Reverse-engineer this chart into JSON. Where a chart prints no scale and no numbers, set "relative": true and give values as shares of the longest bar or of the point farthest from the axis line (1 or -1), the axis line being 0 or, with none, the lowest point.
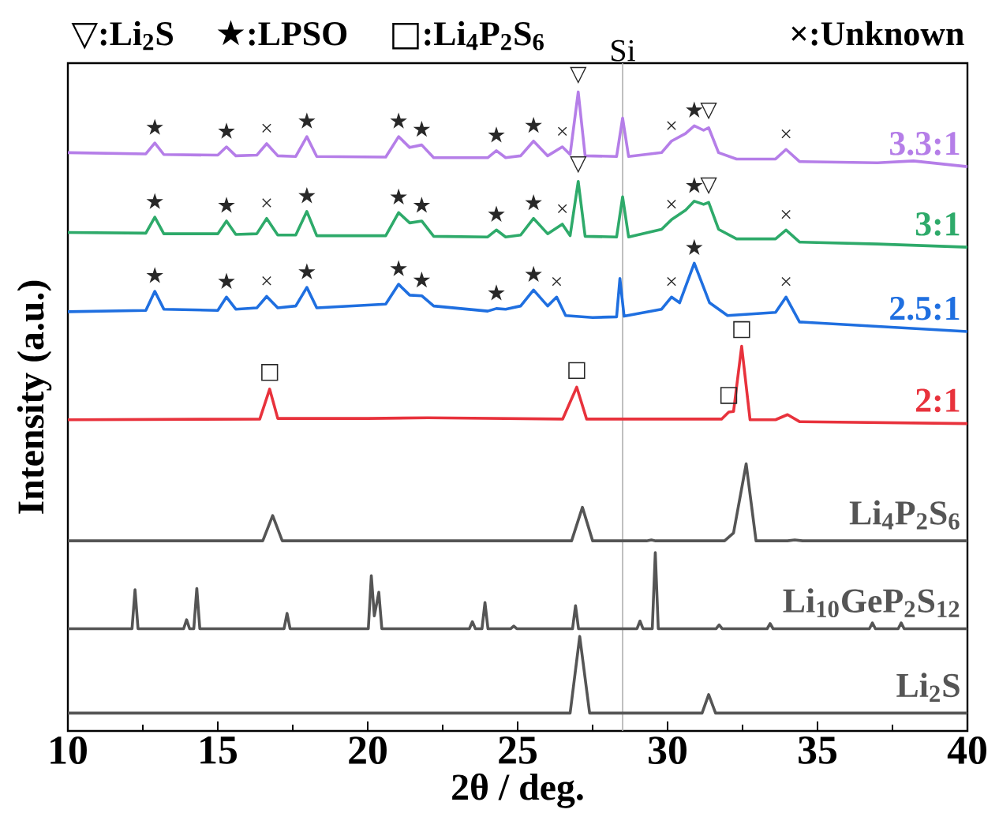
{
  "chart_data": {
    "type": "line",
    "relative": true,
    "xlabel": "2θ / deg.",
    "ylabel": "Intensity (a.u.)",
    "xlim": [
      10,
      40
    ],
    "xticks": [
      10,
      15,
      20,
      25,
      30,
      35,
      40
    ],
    "tick_labels": "x",
    "series": [
      {
        "name": "3.3:1",
        "color": "#b57ee8",
        "x": [
          10,
          12.6,
          12.9,
          13.2,
          15.0,
          15.29,
          15.6,
          16.3,
          16.63,
          17.0,
          17.6,
          17.97,
          18.3,
          20.6,
          21.03,
          21.4,
          21.8,
          22.2,
          24.0,
          24.29,
          24.6,
          25.1,
          25.53,
          26.0,
          26.49,
          26.75,
          27.02,
          27.25,
          28.3,
          28.5,
          28.7,
          29.8,
          30.13,
          30.6,
          30.89,
          31.2,
          31.37,
          31.7,
          32.3,
          33.6,
          33.95,
          34.4,
          37.0,
          38.2,
          40
        ],
        "values": [
          0.905,
          0.903,
          0.92,
          0.902,
          0.901,
          0.914,
          0.9,
          0.901,
          0.919,
          0.9,
          0.899,
          0.93,
          0.899,
          0.898,
          0.93,
          0.913,
          0.917,
          0.897,
          0.897,
          0.908,
          0.897,
          0.9,
          0.923,
          0.9,
          0.914,
          0.902,
          1.0,
          0.9,
          0.899,
          0.959,
          0.899,
          0.905,
          0.923,
          0.935,
          0.947,
          0.94,
          0.944,
          0.905,
          0.895,
          0.895,
          0.91,
          0.891,
          0.889,
          0.892,
          0.883
        ]
      },
      {
        "name": "3:1",
        "color": "#2eaa6a",
        "x": [
          10,
          12.6,
          12.9,
          13.2,
          15.0,
          15.29,
          15.6,
          16.3,
          16.63,
          17.0,
          17.6,
          17.97,
          18.3,
          20.6,
          21.03,
          21.4,
          21.8,
          22.2,
          24.0,
          24.29,
          24.6,
          25.1,
          25.53,
          26.0,
          26.49,
          26.75,
          27.02,
          27.25,
          28.3,
          28.5,
          28.7,
          29.8,
          30.13,
          30.6,
          30.89,
          31.2,
          31.37,
          31.7,
          32.3,
          33.6,
          33.95,
          34.4,
          37.0,
          40
        ],
        "values": [
          0.78,
          0.779,
          0.804,
          0.778,
          0.778,
          0.798,
          0.777,
          0.778,
          0.802,
          0.776,
          0.776,
          0.813,
          0.775,
          0.775,
          0.811,
          0.795,
          0.798,
          0.774,
          0.773,
          0.784,
          0.773,
          0.776,
          0.802,
          0.778,
          0.793,
          0.775,
          0.86,
          0.774,
          0.773,
          0.836,
          0.773,
          0.785,
          0.8,
          0.815,
          0.829,
          0.824,
          0.827,
          0.785,
          0.77,
          0.77,
          0.784,
          0.765,
          0.762,
          0.757
        ]
      },
      {
        "name": "2.5:1",
        "color": "#1f6fe0",
        "x": [
          10,
          12.6,
          12.9,
          13.2,
          15.0,
          15.29,
          15.6,
          16.3,
          16.63,
          17.0,
          17.6,
          17.97,
          18.3,
          20.6,
          21.03,
          21.4,
          21.8,
          22.2,
          24.0,
          24.29,
          24.6,
          25.1,
          25.53,
          26.0,
          26.3,
          26.6,
          27.5,
          28.3,
          28.41,
          28.55,
          29.8,
          30.13,
          30.4,
          30.89,
          31.4,
          32.0,
          33.6,
          33.95,
          34.4,
          37.0,
          40
        ],
        "values": [
          0.656,
          0.658,
          0.688,
          0.66,
          0.658,
          0.679,
          0.66,
          0.662,
          0.68,
          0.662,
          0.665,
          0.694,
          0.662,
          0.668,
          0.699,
          0.682,
          0.681,
          0.665,
          0.657,
          0.661,
          0.66,
          0.665,
          0.69,
          0.665,
          0.679,
          0.65,
          0.647,
          0.648,
          0.708,
          0.649,
          0.66,
          0.679,
          0.67,
          0.732,
          0.67,
          0.65,
          0.655,
          0.679,
          0.64,
          0.633,
          0.625
        ]
      },
      {
        "name": "2:1",
        "color": "#e8323c",
        "x": [
          10,
          16.4,
          16.73,
          17.0,
          20,
          22,
          26.5,
          26.97,
          27.3,
          31.8,
          32.04,
          32.2,
          32.47,
          32.75,
          33.6,
          34.0,
          34.4,
          40
        ],
        "values": [
          0.487,
          0.488,
          0.535,
          0.489,
          0.489,
          0.49,
          0.488,
          0.538,
          0.488,
          0.488,
          0.499,
          0.5,
          0.602,
          0.487,
          0.487,
          0.495,
          0.484,
          0.481
        ]
      },
      {
        "name": "Li$_{4}$P$_{2}$S$_{6}$",
        "color": "#555555",
        "x": [
          10,
          16.5,
          16.83,
          17.15,
          26.8,
          27.16,
          27.5,
          29.3,
          29.46,
          29.6,
          31.9,
          32.2,
          32.62,
          32.95,
          34.0,
          34.24,
          34.5,
          40
        ],
        "values": [
          0.2975,
          0.2975,
          0.337,
          0.2975,
          0.2975,
          0.35,
          0.2975,
          0.2975,
          0.299,
          0.2975,
          0.2975,
          0.31,
          0.418,
          0.2975,
          0.2975,
          0.299,
          0.2975,
          0.2975
        ]
      },
      {
        "name": "Li$_{10}$GeP$_{2}$S$_{12}$",
        "color": "#555555",
        "x": [
          10,
          12.14,
          12.24,
          12.34,
          13.86,
          13.96,
          14.06,
          14.2,
          14.3,
          14.4,
          17.21,
          17.31,
          17.41,
          20.02,
          20.12,
          20.22,
          20.37,
          20.47,
          23.39,
          23.49,
          23.59,
          23.81,
          23.91,
          24.01,
          24.77,
          24.87,
          24.97,
          26.83,
          26.93,
          27.03,
          28.98,
          29.08,
          29.18,
          29.49,
          29.59,
          29.69,
          31.62,
          31.72,
          31.82,
          33.32,
          33.42,
          33.52,
          36.73,
          36.83,
          36.93,
          37.69,
          37.79,
          37.89,
          40
        ],
        "values": [
          0.16,
          0.16,
          0.221,
          0.16,
          0.16,
          0.174,
          0.16,
          0.16,
          0.223,
          0.16,
          0.16,
          0.184,
          0.16,
          0.16,
          0.243,
          0.18,
          0.217,
          0.16,
          0.16,
          0.171,
          0.16,
          0.16,
          0.201,
          0.16,
          0.16,
          0.164,
          0.16,
          0.16,
          0.196,
          0.16,
          0.16,
          0.172,
          0.16,
          0.16,
          0.279,
          0.16,
          0.16,
          0.166,
          0.16,
          0.16,
          0.168,
          0.16,
          0.16,
          0.169,
          0.16,
          0.16,
          0.169,
          0.16,
          0.16
        ]
      },
      {
        "name": "Li$_{2}$S",
        "color": "#555555",
        "x": [
          10,
          26.75,
          27.07,
          27.4,
          31.15,
          31.37,
          31.6,
          40
        ],
        "values": [
          0.028,
          0.028,
          0.148,
          0.028,
          0.028,
          0.057,
          0.028,
          0.028
        ]
      }
    ],
    "ref_lines": [
      {
        "axis": "x",
        "value": 28.5,
        "label": "Si",
        "color": "#b0b0b0"
      }
    ],
    "annotations": [
      "▽:Li$_{2}$S",
      "★:LPSO",
      "□:Li$_{4}$P$_{2}$S$_{6}$",
      "×:Unknown",
      {
        "text": "★",
        "x": 12.9,
        "y": 0.92
      },
      {
        "text": "★",
        "x": 15.29,
        "y": 0.914
      },
      {
        "text": "×",
        "x": 16.63,
        "y": 0.919
      },
      {
        "text": "★",
        "x": 17.97,
        "y": 0.93
      },
      {
        "text": "★",
        "x": 21.03,
        "y": 0.93
      },
      {
        "text": "★",
        "x": 21.8,
        "y": 0.917
      },
      {
        "text": "★",
        "x": 24.29,
        "y": 0.908
      },
      {
        "text": "★",
        "x": 25.53,
        "y": 0.923
      },
      {
        "text": "×",
        "x": 26.49,
        "y": 0.914
      },
      {
        "text": "▽",
        "x": 27.02,
        "y": 1.0
      },
      {
        "text": "×",
        "x": 30.13,
        "y": 0.923
      },
      {
        "text": "★",
        "x": 30.89,
        "y": 0.947
      },
      {
        "text": "▽",
        "x": 31.37,
        "y": 0.944
      },
      {
        "text": "×",
        "x": 33.95,
        "y": 0.91
      },
      {
        "text": "★",
        "x": 12.9,
        "y": 0.804
      },
      {
        "text": "★",
        "x": 15.29,
        "y": 0.798
      },
      {
        "text": "×",
        "x": 16.63,
        "y": 0.802
      },
      {
        "text": "★",
        "x": 17.97,
        "y": 0.813
      },
      {
        "text": "★",
        "x": 21.03,
        "y": 0.811
      },
      {
        "text": "★",
        "x": 21.8,
        "y": 0.798
      },
      {
        "text": "★",
        "x": 24.29,
        "y": 0.784
      },
      {
        "text": "★",
        "x": 25.53,
        "y": 0.802
      },
      {
        "text": "×",
        "x": 26.49,
        "y": 0.793
      },
      {
        "text": "▽",
        "x": 27.02,
        "y": 0.86
      },
      {
        "text": "×",
        "x": 30.13,
        "y": 0.8
      },
      {
        "text": "★",
        "x": 30.89,
        "y": 0.829
      },
      {
        "text": "▽",
        "x": 31.37,
        "y": 0.827
      },
      {
        "text": "×",
        "x": 33.95,
        "y": 0.784
      },
      {
        "text": "★",
        "x": 12.9,
        "y": 0.688
      },
      {
        "text": "★",
        "x": 15.29,
        "y": 0.679
      },
      {
        "text": "×",
        "x": 16.63,
        "y": 0.68
      },
      {
        "text": "★",
        "x": 17.97,
        "y": 0.694
      },
      {
        "text": "★",
        "x": 21.03,
        "y": 0.699
      },
      {
        "text": "★",
        "x": 21.8,
        "y": 0.681
      },
      {
        "text": "★",
        "x": 24.29,
        "y": 0.661
      },
      {
        "text": "★",
        "x": 25.53,
        "y": 0.69
      },
      {
        "text": "×",
        "x": 26.3,
        "y": 0.679
      },
      {
        "text": "×",
        "x": 30.13,
        "y": 0.679
      },
      {
        "text": "★",
        "x": 30.89,
        "y": 0.732
      },
      {
        "text": "×",
        "x": 33.95,
        "y": 0.679
      },
      {
        "text": "□",
        "x": 16.73,
        "y": 0.535
      },
      {
        "text": "□",
        "x": 26.97,
        "y": 0.538
      },
      {
        "text": "□",
        "x": 32.04,
        "y": 0.499
      },
      {
        "text": "□",
        "x": 32.47,
        "y": 0.602
      }
    ]
  }
}
